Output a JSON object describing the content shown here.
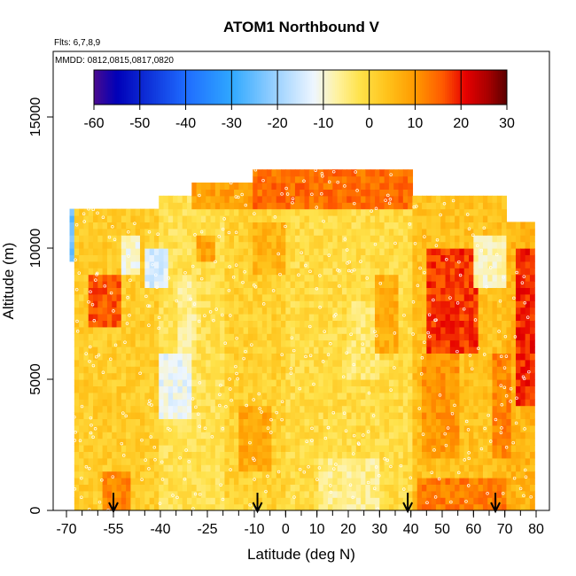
{
  "chart_data": {
    "type": "heatmap",
    "title": "ATOM1 Northbound V",
    "flights_label": "Flts: 6,7,8,9",
    "dates_label": "MMDD: 0812,0815,0817,0820",
    "xlabel": "Latitude (deg N)",
    "ylabel": "Altitude (m)",
    "xlim": [
      -70,
      80
    ],
    "ylim": [
      0,
      17500
    ],
    "x_ticks": [
      "-70",
      "-55",
      "-40",
      "-25",
      "-10",
      "0",
      "10",
      "20",
      "30",
      "40",
      "50",
      "60",
      "70",
      "80"
    ],
    "y_ticks": [
      "0",
      "5000",
      "10000",
      "15000"
    ],
    "colorbar": {
      "range": [
        -60,
        30
      ],
      "ticks": [
        "-60",
        "-50",
        "-40",
        "-30",
        "-20",
        "-10",
        "0",
        "10",
        "20",
        "30"
      ]
    },
    "colors": {
      "min": "#4b0a8f",
      "blue": "#0000b8",
      "light": "#eef6ff",
      "yellow": "#ffe24a",
      "orange": "#ff9a00",
      "red": "#e60000",
      "max": "#5a0000"
    },
    "arrow_latitudes": [
      -55,
      -9,
      39,
      67
    ],
    "regions": [
      {
        "lat": [
          -68,
          -40
        ],
        "alt": [
          0,
          11500
        ],
        "v": 2
      },
      {
        "lat": [
          -40,
          -20
        ],
        "alt": [
          0,
          12000
        ],
        "v": -2
      },
      {
        "lat": [
          -20,
          0
        ],
        "alt": [
          0,
          12000
        ],
        "v": 1
      },
      {
        "lat": [
          0,
          40
        ],
        "alt": [
          0,
          12500
        ],
        "v": -1
      },
      {
        "lat": [
          40,
          70
        ],
        "alt": [
          0,
          12000
        ],
        "v": 4
      },
      {
        "lat": [
          70,
          79
        ],
        "alt": [
          0,
          11000
        ],
        "v": 6
      },
      {
        "lat": [
          -10,
          40
        ],
        "alt": [
          11500,
          13000
        ],
        "v": 14
      },
      {
        "lat": [
          -30,
          -10
        ],
        "alt": [
          11500,
          12500
        ],
        "v": 9
      },
      {
        "lat": [
          -63,
          -53
        ],
        "alt": [
          7000,
          9000
        ],
        "v": 16
      },
      {
        "lat": [
          -58,
          -50
        ],
        "alt": [
          0,
          1500
        ],
        "v": 12
      },
      {
        "lat": [
          -45,
          -38
        ],
        "alt": [
          8500,
          10000
        ],
        "v": -14
      },
      {
        "lat": [
          -40,
          -30
        ],
        "alt": [
          3500,
          6000
        ],
        "v": -12
      },
      {
        "lat": [
          -35,
          -28
        ],
        "alt": [
          6000,
          9000
        ],
        "v": -6
      },
      {
        "lat": [
          -15,
          -5
        ],
        "alt": [
          1500,
          4000
        ],
        "v": 8
      },
      {
        "lat": [
          -10,
          0
        ],
        "alt": [
          9000,
          11000
        ],
        "v": 6
      },
      {
        "lat": [
          10,
          30
        ],
        "alt": [
          0,
          2000
        ],
        "v": -6
      },
      {
        "lat": [
          20,
          30
        ],
        "alt": [
          5000,
          8000
        ],
        "v": -4
      },
      {
        "lat": [
          42,
          70
        ],
        "alt": [
          0,
          1200
        ],
        "v": 13
      },
      {
        "lat": [
          45,
          62
        ],
        "alt": [
          6000,
          10000
        ],
        "v": 18
      },
      {
        "lat": [
          43,
          55
        ],
        "alt": [
          2000,
          6000
        ],
        "v": 10
      },
      {
        "lat": [
          60,
          70
        ],
        "alt": [
          8500,
          10500
        ],
        "v": -8
      },
      {
        "lat": [
          74,
          79
        ],
        "alt": [
          4000,
          10000
        ],
        "v": 19
      },
      {
        "lat": [
          -69,
          -67
        ],
        "alt": [
          9500,
          11500
        ],
        "v": -25
      },
      {
        "lat": [
          -52,
          -46
        ],
        "alt": [
          9000,
          10500
        ],
        "v": -10
      },
      {
        "lat": [
          -28,
          -22
        ],
        "alt": [
          9500,
          10500
        ],
        "v": 8
      },
      {
        "lat": [
          28,
          36
        ],
        "alt": [
          6000,
          9000
        ],
        "v": 7
      },
      {
        "lat": [
          66,
          72
        ],
        "alt": [
          2000,
          6000
        ],
        "v": 12
      }
    ]
  }
}
